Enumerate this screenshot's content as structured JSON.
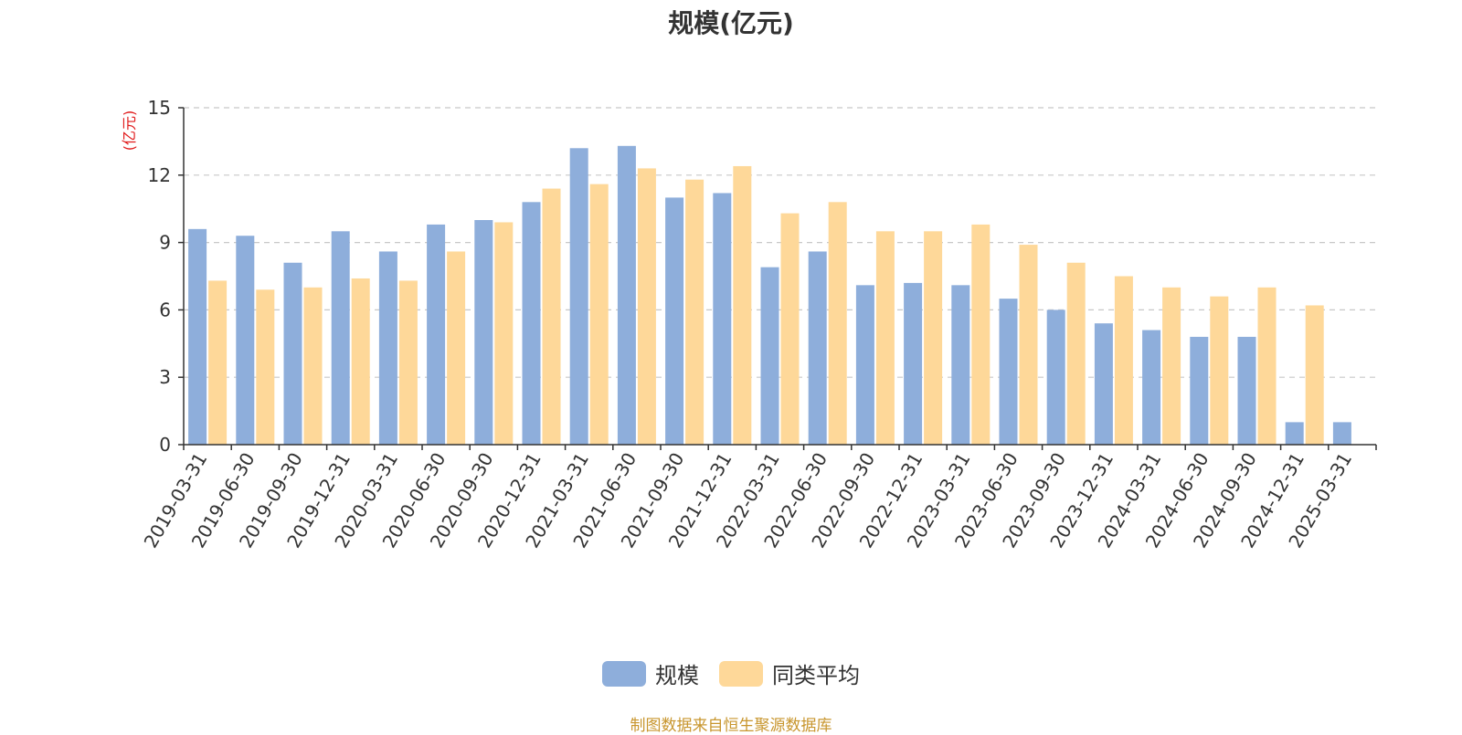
{
  "colors": {
    "series_1": "#8eaedb",
    "series_2": "#fed899",
    "grid": "#c8c8c8",
    "axis": "#333333",
    "unit_label": "#e0191a",
    "source_text": "#c8962e"
  },
  "chart_data": {
    "type": "bar",
    "title": "规模(亿元)",
    "ylabel": "(亿元)",
    "ylim": [
      0,
      15
    ],
    "yticks": [
      0,
      3,
      6,
      9,
      12,
      15
    ],
    "grid": true,
    "legend_position": "bottom-center",
    "categories": [
      "2019-03-31",
      "2019-06-30",
      "2019-09-30",
      "2019-12-31",
      "2020-03-31",
      "2020-06-30",
      "2020-09-30",
      "2020-12-31",
      "2021-03-31",
      "2021-06-30",
      "2021-09-30",
      "2021-12-31",
      "2022-03-31",
      "2022-06-30",
      "2022-09-30",
      "2022-12-31",
      "2023-03-31",
      "2023-06-30",
      "2023-09-30",
      "2023-12-31",
      "2024-03-31",
      "2024-06-30",
      "2024-09-30",
      "2024-12-31",
      "2025-03-31"
    ],
    "series": [
      {
        "name": "规模",
        "values": [
          9.6,
          9.3,
          8.1,
          9.5,
          8.6,
          9.8,
          10.0,
          10.8,
          13.2,
          13.3,
          11.0,
          11.2,
          7.9,
          8.6,
          7.1,
          7.2,
          7.1,
          6.5,
          6.0,
          5.4,
          5.1,
          4.8,
          4.8,
          1.0,
          1.0
        ]
      },
      {
        "name": "同类平均",
        "values": [
          7.3,
          6.9,
          7.0,
          7.4,
          7.3,
          8.6,
          9.9,
          11.4,
          11.6,
          12.3,
          11.8,
          12.4,
          10.3,
          10.8,
          9.5,
          9.5,
          9.8,
          8.9,
          8.1,
          7.5,
          7.0,
          6.6,
          7.0,
          6.2,
          null
        ]
      }
    ]
  },
  "footer": {
    "source": "制图数据来自恒生聚源数据库"
  }
}
